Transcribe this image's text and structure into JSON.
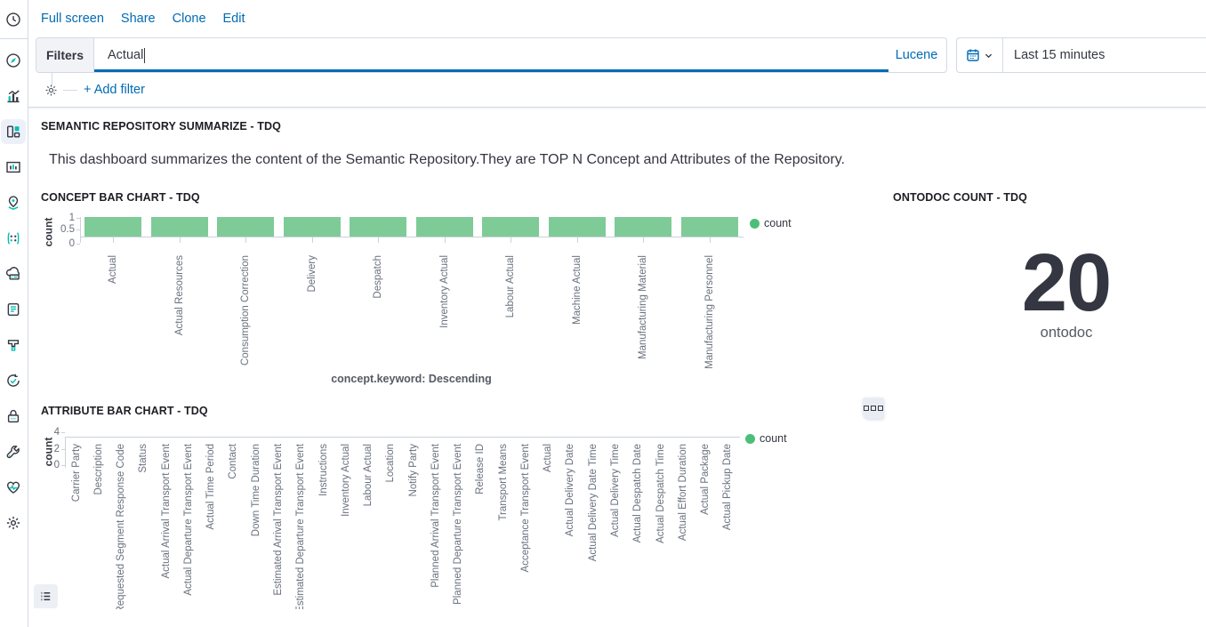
{
  "toolbar": {
    "links": [
      "Full screen",
      "Share",
      "Clone",
      "Edit"
    ]
  },
  "query_bar": {
    "filters_button": "Filters",
    "query_value": "Actual",
    "language": "Lucene",
    "add_filter": "+ Add filter"
  },
  "time_picker": {
    "range": "Last 15 minutes"
  },
  "sidebar": {
    "selected": "dashboard",
    "icons": [
      "recent-history",
      "discover",
      "visualize",
      "dashboard",
      "canvas",
      "maps",
      "machine-learning",
      "infrastructure",
      "logs",
      "apm",
      "uptime",
      "siem",
      "dev-tools",
      "stack-monitoring",
      "management"
    ]
  },
  "panels": {
    "markdown": {
      "title": "SEMANTIC REPOSITORY SUMMARIZE - TDQ",
      "body": "This dashboard summarizes the content of the Semantic Repository.They are TOP N Concept and Attributes of the Repository."
    },
    "ontodoc": {
      "title": "ONTODOC COUNT - TDQ",
      "value": "20",
      "label": "ontodoc"
    }
  },
  "chart_data": [
    {
      "type": "bar",
      "title": "CONCEPT BAR CHART - TDQ",
      "categories": [
        "Actual",
        "Actual Resources",
        "Consumption Correction",
        "Delivery",
        "Despatch",
        "Inventory Actual",
        "Labour Actual",
        "Machine Actual",
        "Manufacturing Material",
        "Manufacturing Personnel"
      ],
      "values": [
        1,
        1,
        1,
        1,
        1,
        1,
        1,
        1,
        1,
        1
      ],
      "ylabel": "count",
      "xlabel": "concept.keyword: Descending",
      "yticks": [
        "1",
        "0.5",
        "0"
      ],
      "ylim": [
        0,
        1
      ],
      "grid": false,
      "legend": [
        "count"
      ],
      "legend_position": "right",
      "bar_color": "#7ECB98",
      "legend_color": "#4DBE79"
    },
    {
      "type": "bar",
      "title": "ATTRIBUTE BAR CHART - TDQ",
      "categories": [
        "Carrier Party",
        "Description",
        "Requested Segment Response Code",
        "Status",
        "Actual Arrival Transport Event",
        "Actual Departure Transport Event",
        "Actual Time Period",
        "Contact",
        "Down Time Duration",
        "Estimated Arrival Transport Event",
        "Estimated Departure Transport Event",
        "Instructions",
        "Inventory Actual",
        "Labour Actual",
        "Location",
        "Notify Party",
        "Planned Arrival Transport Event",
        "Planned Departure Transport Event",
        "Release ID",
        "Transport Means",
        "Acceptance Transport Event",
        "Actual",
        "Actual Delivery Date",
        "Actual Delivery Date Time",
        "Actual Delivery Time",
        "Actual Despatch Date",
        "Actual Despatch Time",
        "Actual Effort Duration",
        "Actual Package",
        "Actual Pickup Date"
      ],
      "values": null,
      "bars_visible": false,
      "ylabel": "count",
      "xlabel": "",
      "yticks": [
        "4",
        "2",
        "0"
      ],
      "ylim": [
        0,
        4
      ],
      "grid": false,
      "legend": [
        "count"
      ],
      "legend_position": "right",
      "bar_color": "#7ECB98",
      "legend_color": "#4DBE79"
    }
  ],
  "colors": {
    "link_blue": "#006BB4",
    "focus_underline": "#006BB4",
    "border": "#D3DAE6",
    "text": "#343741",
    "muted_text": "#69707D",
    "bar_green": "#7ECB98",
    "legend_green": "#4DBE79",
    "teal_accent": "#00BFB3"
  }
}
